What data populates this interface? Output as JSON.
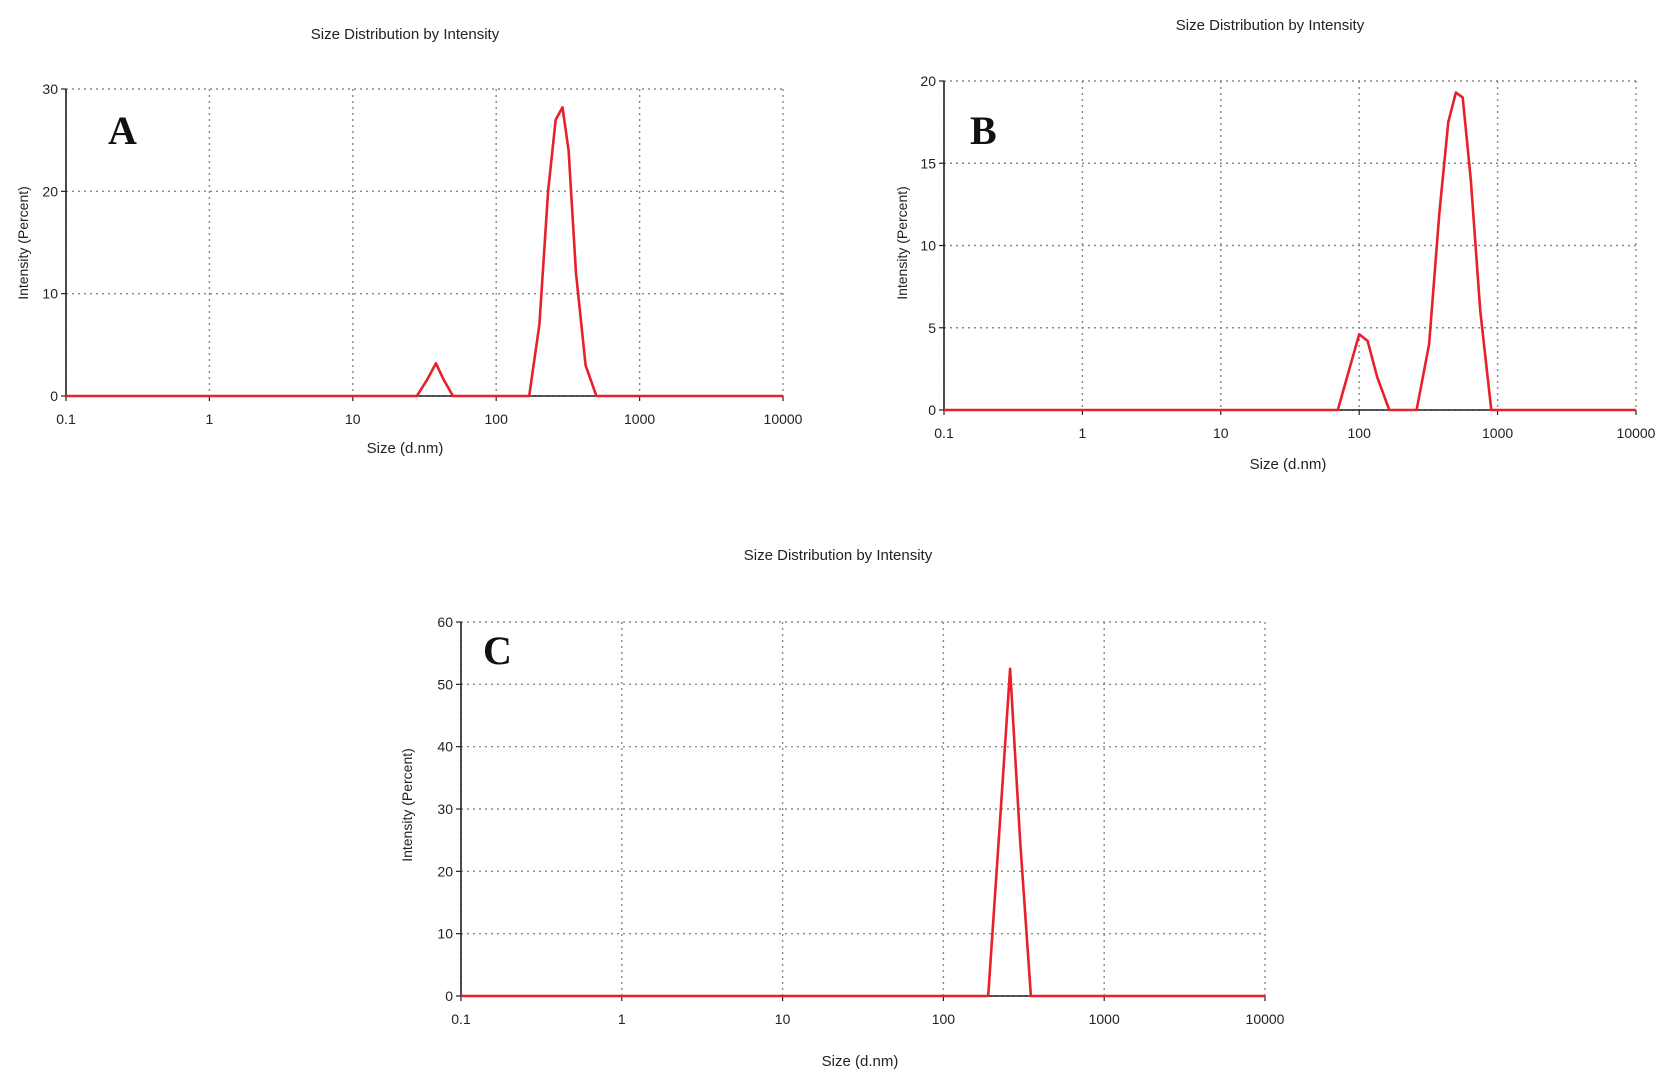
{
  "figure": {
    "colors": {
      "line": "#e8202a",
      "grid": "#888888",
      "axis": "#222222"
    }
  },
  "chart_data": [
    {
      "type": "line",
      "panel": "A",
      "title": "Size Distribution by Intensity",
      "xlabel": "Size (d.nm)",
      "ylabel": "Intensity (Percent)",
      "xscale": "log",
      "xlim": [
        0.1,
        10000
      ],
      "ylim": [
        0,
        30
      ],
      "xticks": [
        0.1,
        1,
        10,
        100,
        1000,
        10000
      ],
      "xtick_labels": [
        "0.1",
        "1",
        "10",
        "100",
        "1000",
        "10000"
      ],
      "yticks": [
        0,
        10,
        20,
        30
      ],
      "ytick_labels": [
        "0",
        "10",
        "20",
        "30"
      ],
      "grid": true,
      "series": [
        {
          "x": [
            0.1,
            28,
            33,
            38,
            43,
            50,
            170,
            200,
            230,
            260,
            290,
            320,
            360,
            420,
            500,
            10000
          ],
          "y": [
            0,
            0,
            1.6,
            3.2,
            1.6,
            0,
            0,
            7,
            20,
            27,
            28.2,
            24,
            12,
            3,
            0,
            0
          ]
        }
      ]
    },
    {
      "type": "line",
      "panel": "B",
      "title": "Size Distribution by Intensity",
      "xlabel": "Size (d.nm)",
      "ylabel": "Intensity (Percent)",
      "xscale": "log",
      "xlim": [
        0.1,
        10000
      ],
      "ylim": [
        0,
        20
      ],
      "xticks": [
        0.1,
        1,
        10,
        100,
        1000,
        10000
      ],
      "xtick_labels": [
        "0.1",
        "1",
        "10",
        "100",
        "1000",
        "10000"
      ],
      "yticks": [
        0,
        5,
        10,
        15,
        20
      ],
      "ytick_labels": [
        "0",
        "5",
        "10",
        "15",
        "20"
      ],
      "grid": true,
      "series": [
        {
          "x": [
            0.1,
            70,
            85,
            100,
            115,
            135,
            165,
            260,
            320,
            380,
            440,
            500,
            560,
            640,
            750,
            900,
            10000
          ],
          "y": [
            0,
            0,
            2.5,
            4.6,
            4.2,
            2,
            0,
            0,
            4,
            12,
            17.5,
            19.3,
            19,
            14,
            6,
            0,
            0
          ]
        }
      ]
    },
    {
      "type": "line",
      "panel": "C",
      "title": "Size Distribution by Intensity",
      "xlabel": "Size (d.nm)",
      "ylabel": "Intensity (Percent)",
      "xscale": "log",
      "xlim": [
        0.1,
        10000
      ],
      "ylim": [
        0,
        60
      ],
      "xticks": [
        0.1,
        1,
        10,
        100,
        1000,
        10000
      ],
      "xtick_labels": [
        "0.1",
        "1",
        "10",
        "100",
        "1000",
        "10000"
      ],
      "yticks": [
        0,
        10,
        20,
        30,
        40,
        50,
        60
      ],
      "ytick_labels": [
        "0",
        "10",
        "20",
        "30",
        "40",
        "50",
        "60"
      ],
      "grid": true,
      "series": [
        {
          "x": [
            0.1,
            190,
            225,
            260,
            300,
            350,
            10000
          ],
          "y": [
            0,
            0,
            28,
            52.5,
            25,
            0,
            0
          ]
        }
      ]
    }
  ]
}
